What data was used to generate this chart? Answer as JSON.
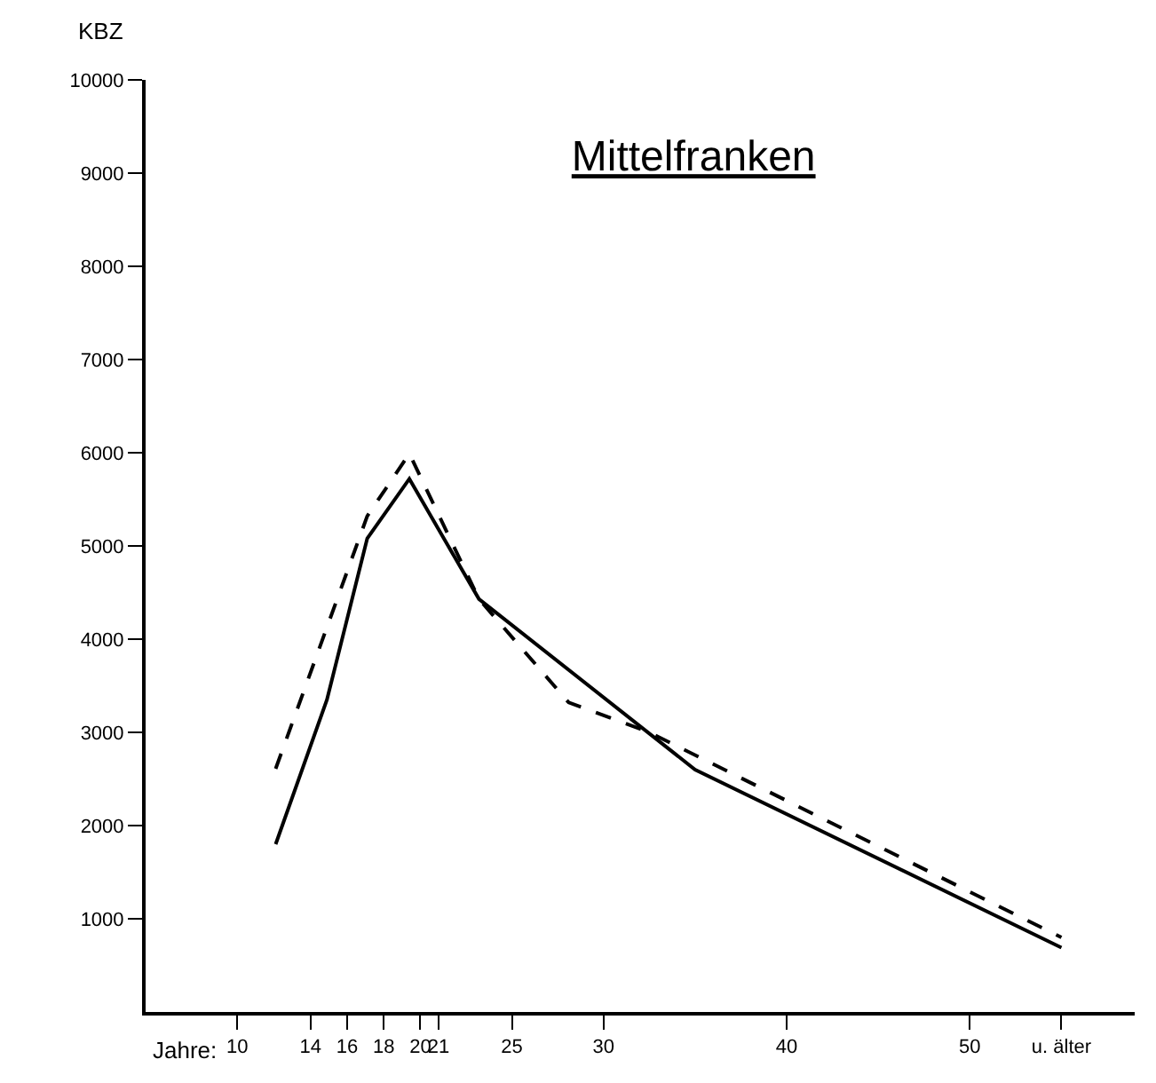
{
  "chart_data": {
    "type": "line",
    "title": "Mittelfranken",
    "xlabel": "Jahre:",
    "ylabel": "KBZ",
    "xlim": [
      5,
      59
    ],
    "xticks": [
      10,
      14,
      16,
      18,
      20,
      21,
      25,
      30,
      40,
      50,
      {
        "value": 55,
        "label": "u. älter"
      }
    ],
    "ylim": [
      0,
      10000
    ],
    "yticks": [
      1000,
      2000,
      3000,
      4000,
      5000,
      6000,
      7000,
      8000,
      9000,
      10000
    ],
    "grid": false,
    "marker": "none",
    "series": [
      {
        "color": "#000000",
        "line_style": "solid",
        "x": [
          12.1,
          14.9,
          17.1,
          19.4,
          23.2,
          35,
          55
        ],
        "values": [
          1800,
          3350,
          5080,
          5720,
          4430,
          2600,
          690
        ]
      },
      {
        "color": "#000000",
        "line_style": "dashed",
        "x": [
          12.1,
          17.1,
          19.4,
          23.2,
          28.1,
          32.5,
          55
        ],
        "values": [
          2610,
          5320,
          5990,
          4430,
          3320,
          3000,
          800
        ]
      }
    ]
  }
}
